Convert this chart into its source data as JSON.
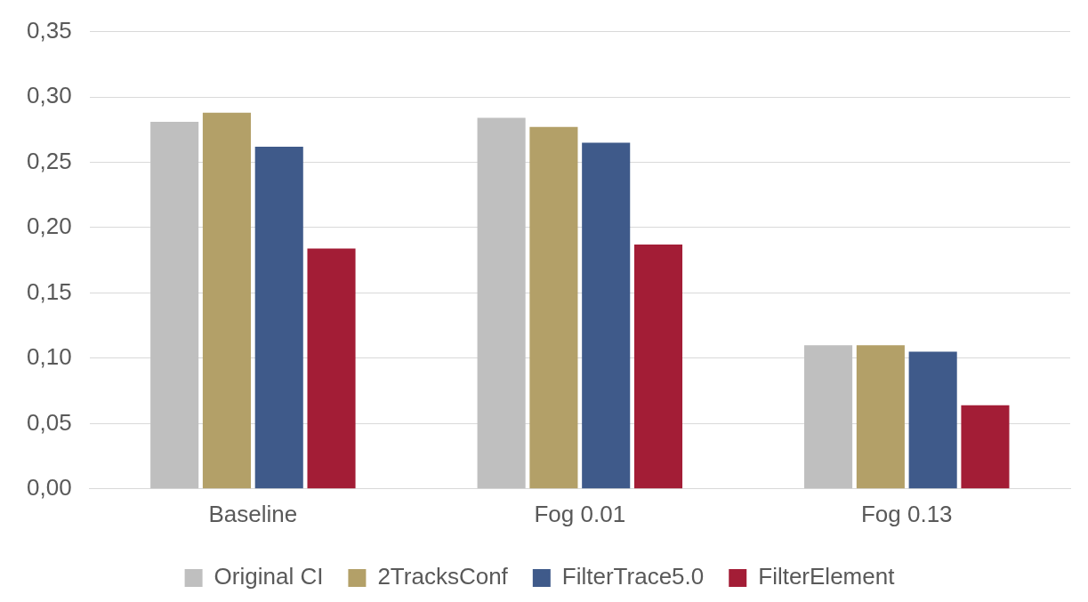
{
  "chart_data": {
    "type": "bar",
    "categories": [
      "Baseline",
      "Fog 0.01",
      "Fog 0.13"
    ],
    "series": [
      {
        "name": "Original CI",
        "color": "#bfbfbf",
        "values": [
          0.281,
          0.284,
          0.11
        ]
      },
      {
        "name": "2TracksConf",
        "color": "#b3a068",
        "values": [
          0.288,
          0.277,
          0.11
        ]
      },
      {
        "name": "FilterTrace5.0",
        "color": "#3f5a8a",
        "values": [
          0.262,
          0.265,
          0.105
        ]
      },
      {
        "name": "FilterElement",
        "color": "#a31d36",
        "values": [
          0.184,
          0.187,
          0.064
        ]
      }
    ],
    "ylim": [
      0,
      0.35
    ],
    "yticks": [
      {
        "value": 0,
        "label": "0,00"
      },
      {
        "value": 0.05,
        "label": "0,05"
      },
      {
        "value": 0.1,
        "label": "0,10"
      },
      {
        "value": 0.15,
        "label": "0,15"
      },
      {
        "value": 0.2,
        "label": "0,20"
      },
      {
        "value": 0.25,
        "label": "0,25"
      },
      {
        "value": 0.3,
        "label": "0,30"
      },
      {
        "value": 0.35,
        "label": "0,35"
      }
    ],
    "grid": "y",
    "legend": "bottom"
  }
}
